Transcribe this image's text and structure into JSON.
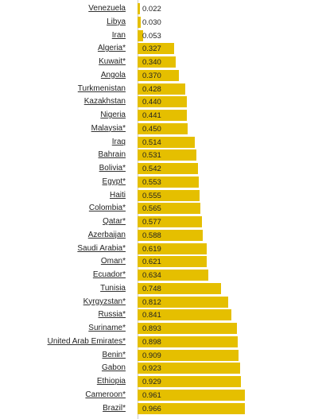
{
  "chart_data": {
    "type": "bar",
    "orientation": "horizontal",
    "categories": [
      "Venezuela",
      "Libya",
      "Iran",
      "Algeria*",
      "Kuwait*",
      "Angola",
      "Turkmenistan",
      "Kazakhstan",
      "Nigeria",
      "Malaysia*",
      "Iraq",
      "Bahrain",
      "Bolivia*",
      "Egypt*",
      "Haiti",
      "Colombia*",
      "Qatar*",
      "Azerbaijan",
      "Saudi Arabia*",
      "Oman*",
      "Ecuador*",
      "Tunisia",
      "Kyrgyzstan*",
      "Russia*",
      "Suriname*",
      "United Arab Emirates*",
      "Benin*",
      "Gabon",
      "Ethiopia",
      "Cameroon*",
      "Brazil*"
    ],
    "value_labels": [
      "0.022",
      "0.030",
      "0.053",
      "0.327",
      "0.340",
      "0.370",
      "0.428",
      "0.440",
      "0.441",
      "0.450",
      "0.514",
      "0.531",
      "0.542",
      "0.553",
      "0.555",
      "0.565",
      "0.577",
      "0.588",
      "0.619",
      "0.621",
      "0.634",
      "0.748",
      "0.812",
      "0.841",
      "0.893",
      "0.898",
      "0.909",
      "0.923",
      "0.929",
      "0.961",
      "0.966"
    ],
    "values": [
      0.022,
      0.03,
      0.053,
      0.327,
      0.34,
      0.37,
      0.428,
      0.44,
      0.441,
      0.45,
      0.514,
      0.531,
      0.542,
      0.553,
      0.555,
      0.565,
      0.577,
      0.588,
      0.619,
      0.621,
      0.634,
      0.748,
      0.812,
      0.841,
      0.893,
      0.898,
      0.909,
      0.923,
      0.929,
      0.961,
      0.966
    ],
    "xlim": [
      0,
      1
    ],
    "grid": false,
    "legend": "none",
    "bar_color": "#e5bf00",
    "title": "",
    "xlabel": "",
    "ylabel": ""
  }
}
